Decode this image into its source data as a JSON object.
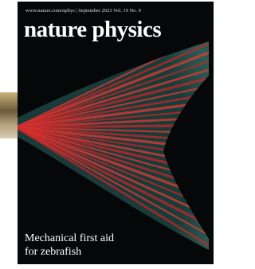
{
  "header": {
    "url_line": "www.nature.com/nphys | September 2023 Vol. 19 No. 9",
    "title": "nature physics"
  },
  "cover_story": {
    "headline_lines": [
      "Mechanical first aid",
      "for zebrafish"
    ]
  }
}
